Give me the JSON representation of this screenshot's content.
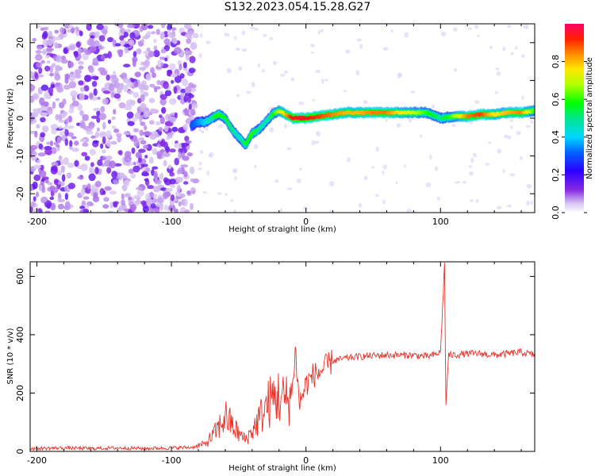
{
  "title": "S132.2023.054.15.28.G27",
  "chart_data": [
    {
      "type": "heatmap",
      "xlabel": "Height of straight line (km)",
      "ylabel": "Frequency (Hz)",
      "xlim": [
        -205,
        170
      ],
      "ylim": [
        -25,
        25
      ],
      "xticks": [
        -200,
        -100,
        0,
        100
      ],
      "yticks": [
        -20,
        -10,
        0,
        10,
        20
      ],
      "colorbar": {
        "label": "Normalized spectral amplitude",
        "range": [
          0,
          1
        ],
        "ticks": [
          0.0,
          0.2,
          0.4,
          0.6,
          0.8
        ],
        "tick_labels": [
          "0.0",
          "0.2",
          "0.4",
          "0.6",
          "0.8"
        ]
      },
      "noise_region_x": [
        -205,
        -82
      ],
      "ridge": {
        "x": [
          -85,
          -80,
          -75,
          -70,
          -65,
          -60,
          -55,
          -50,
          -45,
          -40,
          -35,
          -30,
          -25,
          -20,
          -15,
          -10,
          0,
          10,
          20,
          30,
          40,
          50,
          60,
          70,
          80,
          90,
          100,
          110,
          120,
          130,
          140,
          150,
          160,
          170
        ],
        "freq": [
          -2,
          -1,
          -1,
          0,
          1,
          0,
          -3,
          -5,
          -7,
          -4,
          -3,
          -1,
          1,
          2,
          1,
          0,
          0,
          0.5,
          1,
          1.5,
          1.5,
          1.5,
          1.5,
          1.5,
          1.5,
          1.5,
          0,
          0.5,
          0.5,
          1,
          1,
          1.5,
          1.5,
          2
        ],
        "amplitude": [
          0.3,
          0.35,
          0.4,
          0.5,
          0.6,
          0.55,
          0.5,
          0.45,
          0.55,
          0.6,
          0.5,
          0.45,
          0.55,
          0.7,
          0.8,
          0.95,
          0.95,
          0.9,
          0.85,
          0.8,
          0.8,
          0.85,
          0.85,
          0.75,
          0.7,
          0.6,
          0.5,
          0.65,
          0.85,
          0.9,
          0.75,
          0.8,
          0.85,
          0.6
        ]
      }
    },
    {
      "type": "line",
      "xlabel": "Height of straight line (km)",
      "ylabel": "SNR (10 * v/v)",
      "xlim": [
        -205,
        170
      ],
      "ylim": [
        0,
        650
      ],
      "xticks": [
        -200,
        -100,
        0,
        100
      ],
      "yticks": [
        0,
        200,
        400,
        600
      ],
      "color": "#e8332a",
      "series": [
        {
          "x": [
            -205,
            -180,
            -160,
            -140,
            -120,
            -100,
            -85,
            -75,
            -70,
            -65,
            -60,
            -55,
            -50,
            -45,
            -40,
            -35,
            -30,
            -25,
            -20,
            -15,
            -10,
            -8,
            -5,
            0,
            5,
            10,
            15,
            20,
            25,
            30,
            40,
            50,
            60,
            70,
            80,
            90,
            95,
            100,
            103,
            104,
            106,
            110,
            120,
            130,
            140,
            150,
            160,
            170
          ],
          "values": [
            10,
            12,
            10,
            12,
            10,
            12,
            14,
            25,
            50,
            80,
            120,
            90,
            60,
            40,
            70,
            110,
            150,
            180,
            190,
            170,
            210,
            360,
            160,
            230,
            260,
            270,
            290,
            310,
            315,
            320,
            325,
            328,
            330,
            330,
            330,
            325,
            330,
            340,
            640,
            160,
            330,
            330,
            335,
            335,
            330,
            335,
            340,
            330
          ]
        }
      ]
    }
  ]
}
